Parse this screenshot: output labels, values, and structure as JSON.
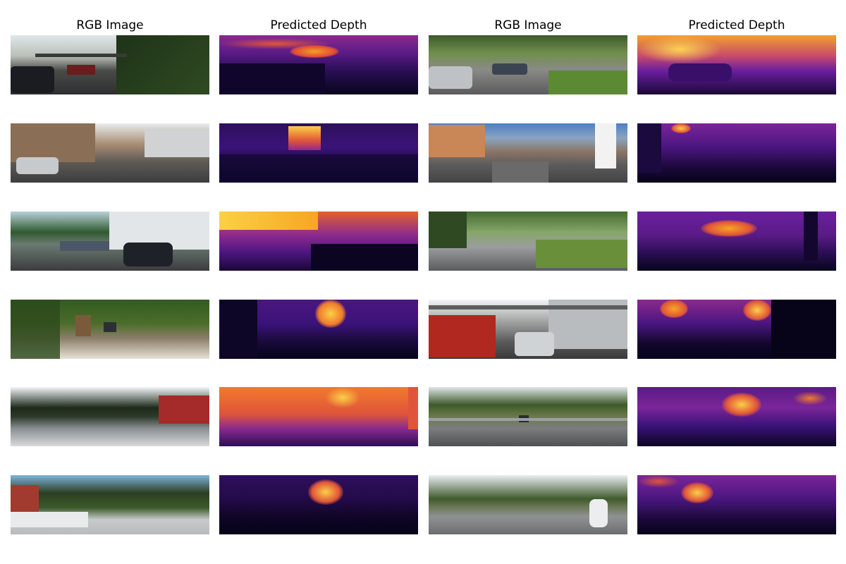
{
  "figure": {
    "column_titles": [
      "RGB Image",
      "Predicted Depth",
      "RGB Image",
      "Predicted Depth"
    ],
    "rows": 6,
    "colors": {
      "depth_near": "#07041a",
      "depth_mid": "#6a1fa0",
      "depth_far_1": "#e0553a",
      "depth_far_2": "#f7a623",
      "depth_hot": "#fff1a0"
    }
  }
}
